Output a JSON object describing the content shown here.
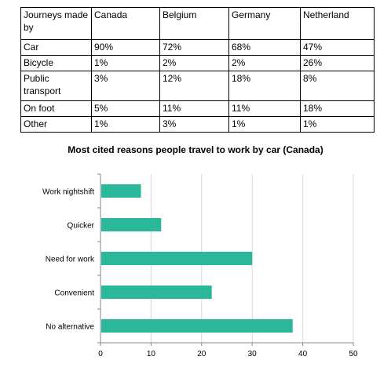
{
  "table": {
    "header": [
      "Journeys made by",
      "Canada",
      "Belgium",
      "Germany",
      "Netherland"
    ],
    "rows": [
      [
        "Car",
        "90%",
        "72%",
        "68%",
        "47%"
      ],
      [
        "Bicycle",
        "1%",
        "2%",
        "2%",
        "26%"
      ],
      [
        "Public transport",
        "3%",
        "12%",
        "18%",
        "8%"
      ],
      [
        "On foot",
        "5%",
        "11%",
        "11%",
        "18%"
      ],
      [
        "Other",
        "1%",
        "3%",
        "1%",
        "1%"
      ]
    ]
  },
  "chart_data": {
    "type": "bar",
    "orientation": "horizontal",
    "title": "Most cited reasons people travel to work by car (Canada)",
    "categories": [
      "Work nightshift",
      "Quicker",
      "Need for work",
      "Convenient",
      "No alternative"
    ],
    "values": [
      8,
      12,
      30,
      22,
      38
    ],
    "xlim": [
      0,
      50
    ],
    "xticks": [
      "0",
      "10",
      "20",
      "30",
      "40",
      "50"
    ],
    "grid": true,
    "bar_color": "#2bb89a",
    "xlabel": "",
    "ylabel": ""
  }
}
